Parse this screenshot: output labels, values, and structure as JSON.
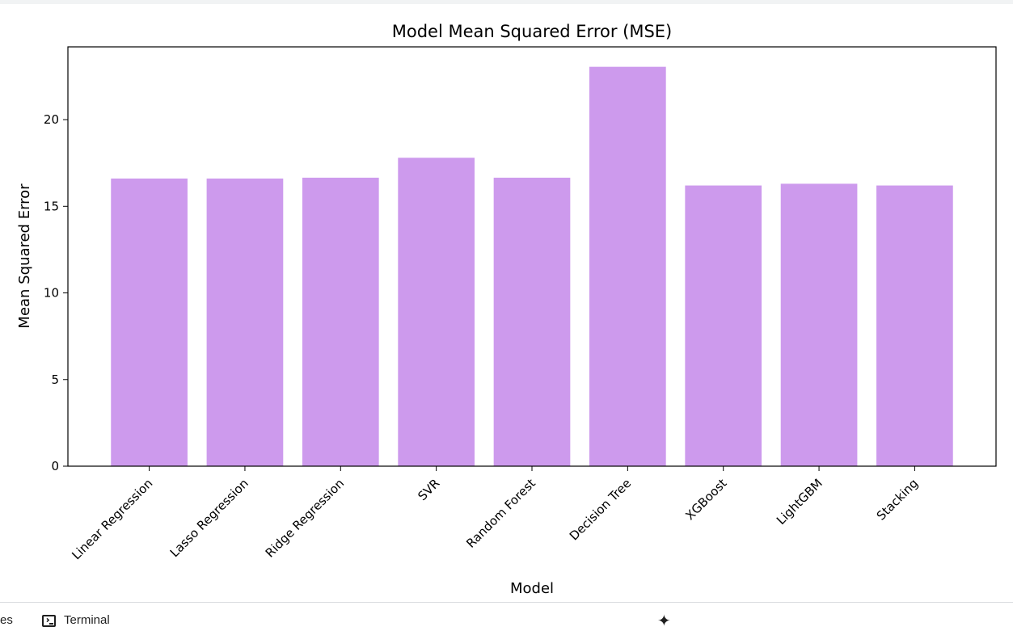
{
  "chart_data": {
    "type": "bar",
    "title": "Model Mean Squared Error (MSE)",
    "xlabel": "Model",
    "ylabel": "Mean Squared Error",
    "categories": [
      "Linear Regression",
      "Lasso Regression",
      "Ridge Regression",
      "SVR",
      "Random Forest",
      "Decision Tree",
      "XGBoost",
      "LightGBM",
      "Stacking"
    ],
    "values": [
      16.6,
      16.6,
      16.65,
      17.8,
      16.65,
      23.05,
      16.2,
      16.3,
      16.2
    ],
    "ylim": [
      0,
      24.2
    ],
    "yticks": [
      0,
      5,
      10,
      15,
      20
    ],
    "bar_color": "#cd9aed",
    "grid": false,
    "legend": "none"
  },
  "bottom_bar": {
    "files_label": "es",
    "terminal_label": "Terminal",
    "terminal_icon": "terminal-icon",
    "assistant_icon": "sparkle-icon"
  }
}
